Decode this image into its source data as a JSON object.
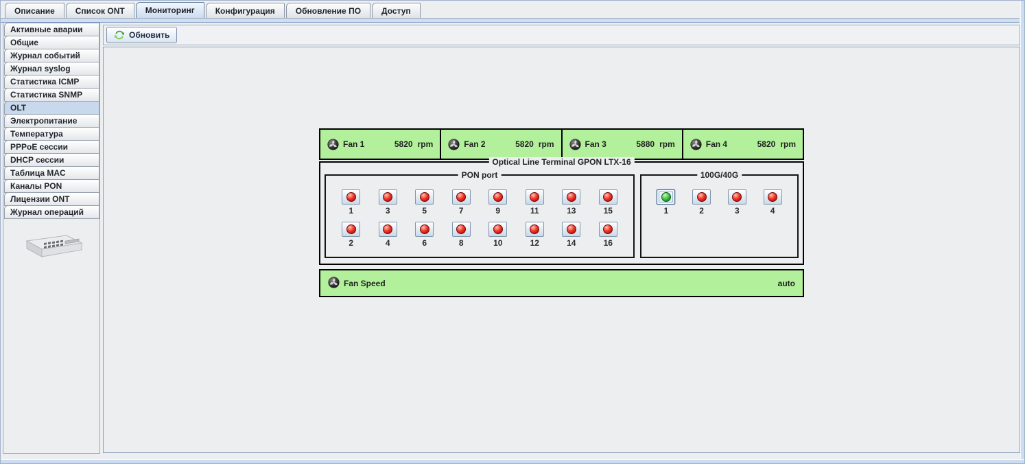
{
  "top_tabs": {
    "items": [
      {
        "id": "description",
        "label": "Описание",
        "selected": false
      },
      {
        "id": "ont-list",
        "label": "Список ONT",
        "selected": false
      },
      {
        "id": "monitoring",
        "label": "Мониторинг",
        "selected": true
      },
      {
        "id": "configuration",
        "label": "Конфигурация",
        "selected": false
      },
      {
        "id": "firmware-update",
        "label": "Обновление ПО",
        "selected": false
      },
      {
        "id": "access",
        "label": "Доступ",
        "selected": false
      }
    ]
  },
  "sidebar": {
    "items": [
      {
        "id": "active-alarms",
        "label": "Активные аварии",
        "selected": false
      },
      {
        "id": "general",
        "label": "Общие",
        "selected": false
      },
      {
        "id": "event-log",
        "label": "Журнал событий",
        "selected": false
      },
      {
        "id": "syslog-log",
        "label": "Журнал syslog",
        "selected": false
      },
      {
        "id": "icmp-stats",
        "label": "Статистика ICMP",
        "selected": false
      },
      {
        "id": "snmp-stats",
        "label": "Статистика SNMP",
        "selected": false
      },
      {
        "id": "olt",
        "label": "OLT",
        "selected": true
      },
      {
        "id": "power",
        "label": "Электропитание",
        "selected": false
      },
      {
        "id": "temperature",
        "label": "Температура",
        "selected": false
      },
      {
        "id": "pppoe-sessions",
        "label": "PPPoE сессии",
        "selected": false
      },
      {
        "id": "dhcp-sessions",
        "label": "DHCP сессии",
        "selected": false
      },
      {
        "id": "mac-table",
        "label": "Таблица MAC",
        "selected": false
      },
      {
        "id": "pon-channels",
        "label": "Каналы PON",
        "selected": false
      },
      {
        "id": "ont-licenses",
        "label": "Лицензии ONT",
        "selected": false
      },
      {
        "id": "operation-log",
        "label": "Журнал операций",
        "selected": false
      }
    ],
    "device_image": "olt-switch-illustration"
  },
  "toolbar": {
    "refresh_button": {
      "label": "Обновить",
      "icon": "refresh-icon"
    }
  },
  "monitor": {
    "fans": [
      {
        "label": "Fan 1",
        "value": "5820",
        "unit": "rpm"
      },
      {
        "label": "Fan 2",
        "value": "5820",
        "unit": "rpm"
      },
      {
        "label": "Fan 3",
        "value": "5880",
        "unit": "rpm"
      },
      {
        "label": "Fan 4",
        "value": "5820",
        "unit": "rpm"
      }
    ],
    "device_panel": {
      "title": "Optical Line Terminal GPON LTX-16",
      "pon_group": {
        "title": "PON port",
        "rows": [
          [
            {
              "num": "1",
              "status": "red"
            },
            {
              "num": "3",
              "status": "red"
            },
            {
              "num": "5",
              "status": "red"
            },
            {
              "num": "7",
              "status": "red"
            },
            {
              "num": "9",
              "status": "red"
            },
            {
              "num": "11",
              "status": "red"
            },
            {
              "num": "13",
              "status": "red"
            },
            {
              "num": "15",
              "status": "red"
            }
          ],
          [
            {
              "num": "2",
              "status": "red"
            },
            {
              "num": "4",
              "status": "red"
            },
            {
              "num": "6",
              "status": "red"
            },
            {
              "num": "8",
              "status": "red"
            },
            {
              "num": "10",
              "status": "red"
            },
            {
              "num": "12",
              "status": "red"
            },
            {
              "num": "14",
              "status": "red"
            },
            {
              "num": "16",
              "status": "red"
            }
          ]
        ]
      },
      "uplink_group": {
        "title": "100G/40G",
        "ports": [
          {
            "num": "1",
            "status": "green",
            "selected": true
          },
          {
            "num": "2",
            "status": "red",
            "selected": false
          },
          {
            "num": "3",
            "status": "red",
            "selected": false
          },
          {
            "num": "4",
            "status": "red",
            "selected": false
          }
        ]
      }
    },
    "fan_speed": {
      "label": "Fan Speed",
      "value": "auto",
      "icon": "fan-icon"
    }
  },
  "colors": {
    "status_green_bg": "#b2f09b",
    "led_red": "#d8201a",
    "led_green": "#2db33a",
    "selected_tab_blue": "#cbdcf2",
    "tab_band_blue": "#cfdff3",
    "panel_border": "#000000"
  }
}
